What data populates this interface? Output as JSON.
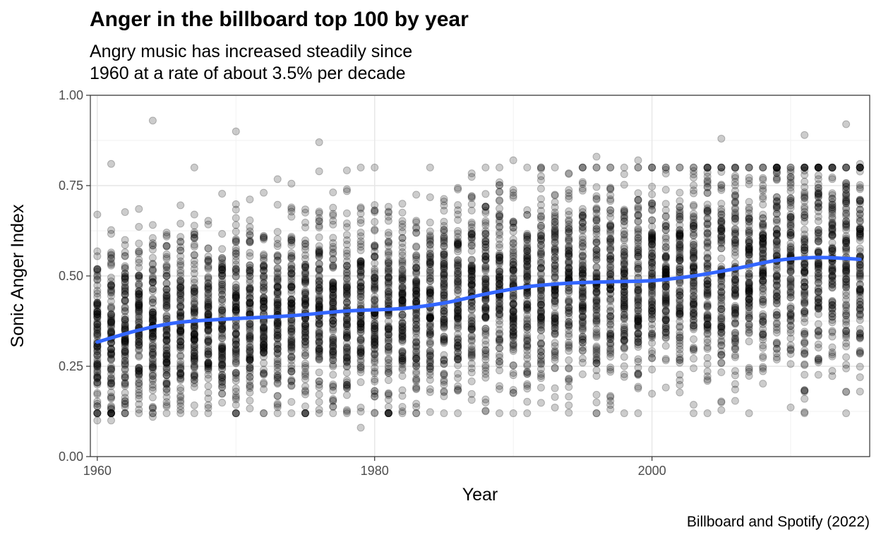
{
  "chart_data": {
    "type": "scatter",
    "title": "Anger in the billboard top 100 by year",
    "subtitle_lines": [
      "Angry music has increased steadily since",
      "1960 at a rate of about 3.5% per decade"
    ],
    "caption": "Billboard and Spotify (2022)",
    "xlabel": "Year",
    "ylabel": "Sonic Anger Index",
    "xlim": [
      1959.5,
      2015.7
    ],
    "ylim": [
      0,
      1
    ],
    "x_ticks": [
      1960,
      1980,
      2000
    ],
    "y_ticks": [
      0,
      0.25,
      0.5,
      0.75,
      1
    ],
    "y_tick_labels": [
      "0.00",
      "0.25",
      "0.50",
      "0.75",
      "1.00"
    ],
    "grid": true,
    "point_color": "#000000",
    "point_alpha": 0.2,
    "smooth_color": "#3366FF",
    "points_per_year": 100,
    "year_range": [
      1960,
      2015
    ],
    "yearly_spread": [
      {
        "year": 1960,
        "low": 0.1,
        "high": 0.67
      },
      {
        "year": 1961,
        "low": 0.1,
        "high": 0.81
      },
      {
        "year": 1964,
        "low": 0.11,
        "high": 0.93
      },
      {
        "year": 1970,
        "low": 0.12,
        "high": 0.9
      },
      {
        "year": 1976,
        "low": 0.13,
        "high": 0.87
      },
      {
        "year": 1979,
        "low": 0.08,
        "high": 0.69
      },
      {
        "year": 1990,
        "low": 0.12,
        "high": 0.82
      },
      {
        "year": 1996,
        "low": 0.15,
        "high": 0.83
      },
      {
        "year": 1999,
        "low": 0.12,
        "high": 0.82
      },
      {
        "year": 2005,
        "low": 0.15,
        "high": 0.88
      },
      {
        "year": 2011,
        "low": 0.16,
        "high": 0.89
      },
      {
        "year": 2014,
        "low": 0.18,
        "high": 0.92
      },
      {
        "year": 2015,
        "low": 0.18,
        "high": 0.81
      }
    ],
    "smooth_trend": [
      {
        "x": 1960,
        "y": 0.317
      },
      {
        "x": 1963,
        "y": 0.35
      },
      {
        "x": 1966,
        "y": 0.372
      },
      {
        "x": 1970,
        "y": 0.382
      },
      {
        "x": 1974,
        "y": 0.39
      },
      {
        "x": 1978,
        "y": 0.403
      },
      {
        "x": 1982,
        "y": 0.41
      },
      {
        "x": 1985,
        "y": 0.425
      },
      {
        "x": 1988,
        "y": 0.45
      },
      {
        "x": 1991,
        "y": 0.47
      },
      {
        "x": 1994,
        "y": 0.48
      },
      {
        "x": 1997,
        "y": 0.484
      },
      {
        "x": 2000,
        "y": 0.487
      },
      {
        "x": 2003,
        "y": 0.5
      },
      {
        "x": 2006,
        "y": 0.52
      },
      {
        "x": 2009,
        "y": 0.543
      },
      {
        "x": 2012,
        "y": 0.551
      },
      {
        "x": 2015,
        "y": 0.546
      }
    ]
  }
}
